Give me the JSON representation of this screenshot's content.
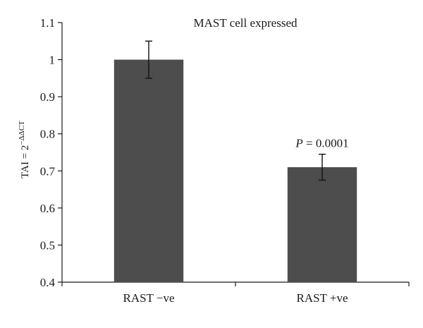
{
  "chart_data": {
    "type": "bar",
    "title": "MAST cell expressed",
    "ylabel": "TAI = 2",
    "ylabel_superscript": "−ΔΔCT",
    "xlabel": "",
    "categories": [
      "RAST −ve",
      "RAST +ve"
    ],
    "values": [
      1.0,
      0.71
    ],
    "error": [
      0.05,
      0.035
    ],
    "ylim": [
      0.4,
      1.1
    ],
    "yticks": [
      0.4,
      0.5,
      0.6,
      0.7,
      0.8,
      0.9,
      1,
      1.1
    ],
    "ytick_labels": [
      "0.4",
      "0.5",
      "0.6",
      "0.7",
      "0.8",
      "0.9",
      "1",
      "1.1"
    ],
    "bar_color": "#4d4d4d",
    "grid": false,
    "legend": "none",
    "annotation": {
      "category_index": 1,
      "p_symbol": "P",
      "value_text": " = 0.0001"
    }
  }
}
